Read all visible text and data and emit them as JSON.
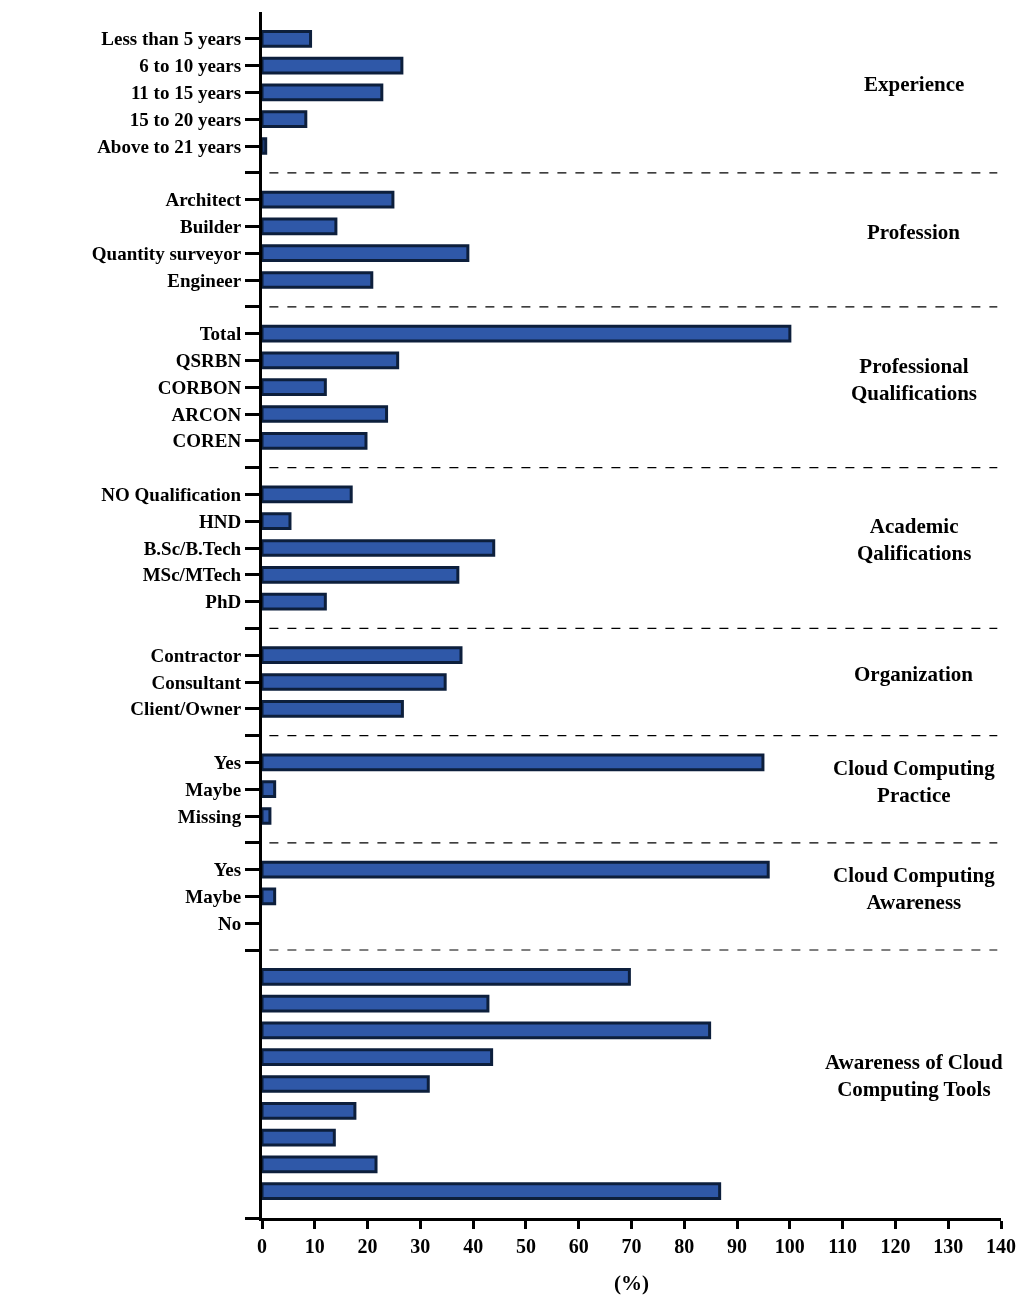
{
  "chart_data": [
    {
      "type": "bar",
      "orientation": "horizontal",
      "title": "Experience",
      "categories": [
        "Less than 5 years",
        "6 to 10 years",
        "11 to 15 years",
        "15 to 20 years",
        "Above to 21 years"
      ],
      "values": [
        9.2,
        26.5,
        22.7,
        8.3,
        0.7
      ],
      "color": "#2f58a8",
      "xlim": [
        0,
        140
      ],
      "xticks": [
        0,
        10,
        20,
        30,
        40,
        50,
        60,
        70,
        80,
        90,
        100,
        110,
        120,
        130,
        140
      ],
      "tick_labels": "y"
    },
    {
      "type": "bar",
      "orientation": "horizontal",
      "title": "Profession",
      "categories": [
        "Architect",
        "Builder",
        "Quantity surveyor",
        "Engineer"
      ],
      "values": [
        24.8,
        14,
        39,
        20.8
      ],
      "color": "#2f58a8",
      "xlim": [
        0,
        140
      ],
      "xticks": [
        0,
        10,
        20,
        30,
        40,
        50,
        60,
        70,
        80,
        90,
        100,
        110,
        120,
        130,
        140
      ],
      "tick_labels": "y"
    },
    {
      "type": "bar",
      "orientation": "horizontal",
      "title": "Professional\nQualifications",
      "categories": [
        "Total",
        "QSRBN",
        "CORBON",
        "ARCON",
        "COREN"
      ],
      "values": [
        100,
        25.7,
        12,
        23.6,
        19.7
      ],
      "color": "#2f58a8",
      "xlim": [
        0,
        140
      ],
      "xticks": [
        0,
        10,
        20,
        30,
        40,
        50,
        60,
        70,
        80,
        90,
        100,
        110,
        120,
        130,
        140
      ],
      "tick_labels": "y"
    },
    {
      "type": "bar",
      "orientation": "horizontal",
      "title": "Academic\nQalifications",
      "categories": [
        "NO Qualification",
        "HND",
        "B.Sc/B.Tech",
        "MSc/MTech",
        "PhD"
      ],
      "values": [
        16.9,
        5.3,
        43.9,
        37.1,
        12
      ],
      "color": "#2f58a8",
      "xlim": [
        0,
        140
      ],
      "xticks": [
        0,
        10,
        20,
        30,
        40,
        50,
        60,
        70,
        80,
        90,
        100,
        110,
        120,
        130,
        140
      ],
      "tick_labels": "y"
    },
    {
      "type": "bar",
      "orientation": "horizontal",
      "title": "Organization",
      "categories": [
        "Contractor",
        "Consultant",
        "Client/Owner"
      ],
      "values": [
        37.7,
        34.7,
        26.6
      ],
      "color": "#2f58a8",
      "xlim": [
        0,
        140
      ],
      "xticks": [
        0,
        10,
        20,
        30,
        40,
        50,
        60,
        70,
        80,
        90,
        100,
        110,
        120,
        130,
        140
      ],
      "tick_labels": "y"
    },
    {
      "type": "bar",
      "orientation": "horizontal",
      "title": "Cloud Computing\nPractice",
      "categories": [
        "Yes",
        "Maybe",
        "Missing"
      ],
      "values": [
        94.9,
        2.4,
        1.5
      ],
      "color": "#2f58a8",
      "xlim": [
        0,
        140
      ],
      "xticks": [
        0,
        10,
        20,
        30,
        40,
        50,
        60,
        70,
        80,
        90,
        100,
        110,
        120,
        130,
        140
      ],
      "tick_labels": "y"
    },
    {
      "type": "bar",
      "orientation": "horizontal",
      "title": "Cloud Computing\nAwareness",
      "categories": [
        "Yes",
        "Maybe",
        "No"
      ],
      "values": [
        95.9,
        2.4,
        0
      ],
      "color": "#2f58a8",
      "xlim": [
        0,
        140
      ],
      "xticks": [
        0,
        10,
        20,
        30,
        40,
        50,
        60,
        70,
        80,
        90,
        100,
        110,
        120,
        130,
        140
      ],
      "tick_labels": "y"
    },
    {
      "type": "bar",
      "orientation": "horizontal",
      "title": "Awareness of Cloud\nComputing Tools",
      "categories": [
        null,
        null,
        null,
        null,
        null,
        null,
        null,
        null,
        null
      ],
      "values": [
        69.6,
        42.8,
        84.8,
        43.5,
        31.5,
        17.6,
        13.7,
        21.6,
        86.7
      ],
      "color": "#2f58a8",
      "xlim": [
        0,
        140
      ],
      "xticks": [
        0,
        10,
        20,
        30,
        40,
        50,
        60,
        70,
        80,
        90,
        100,
        110,
        120,
        130,
        140
      ],
      "xlabel": "(%)"
    }
  ]
}
